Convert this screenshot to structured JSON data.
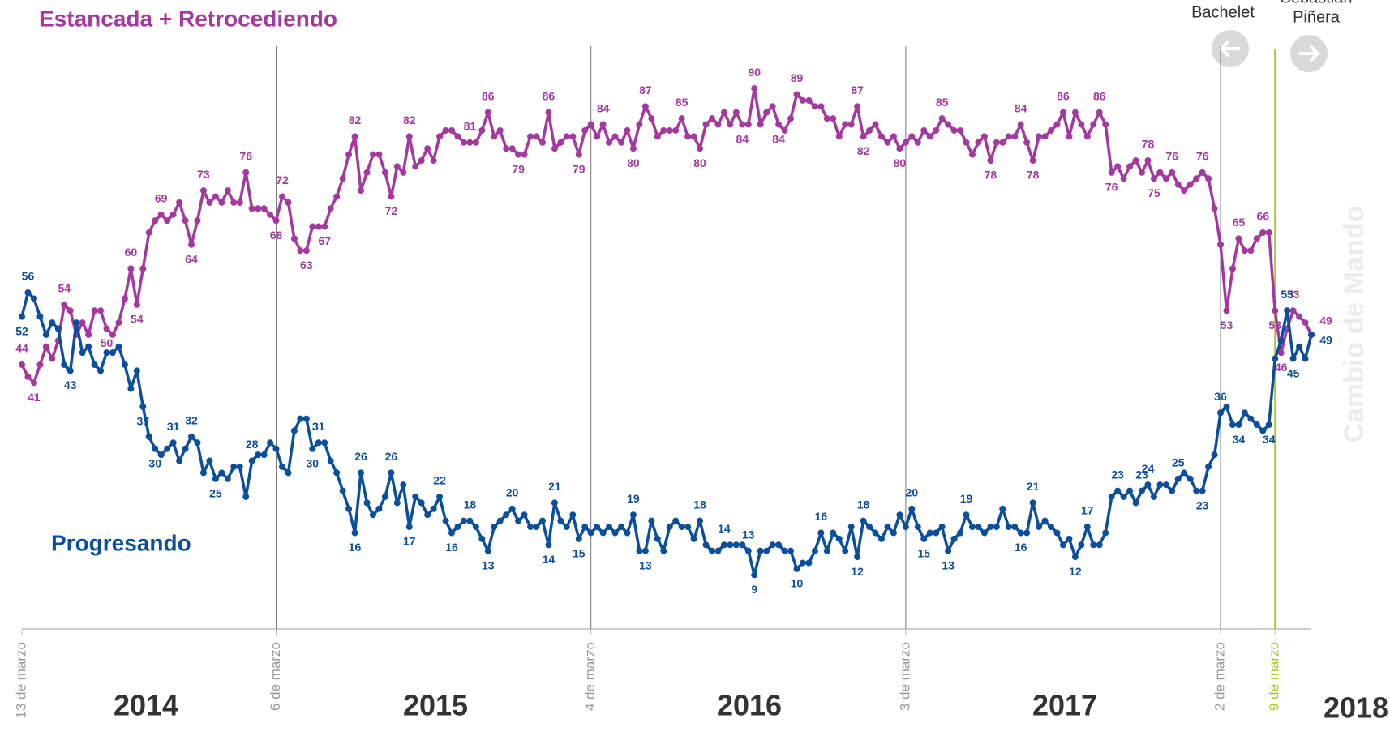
{
  "chart_data": {
    "type": "line",
    "title": "Estancada + Retrocediendo",
    "annotations": {
      "left_president": "Bachelet",
      "right_president": [
        "Sebastián",
        "Piñera"
      ],
      "transition": "Cambio de Mando",
      "years": [
        "2014",
        "2015",
        "2016",
        "2017",
        "2018"
      ]
    },
    "ylim": [
      0,
      100
    ],
    "categories": [
      "13 de marzo",
      null,
      null,
      null,
      null,
      null,
      null,
      null,
      null,
      null,
      null,
      null,
      null,
      null,
      null,
      null,
      null,
      null,
      null,
      null,
      null,
      null,
      null,
      null,
      null,
      null,
      null,
      null,
      null,
      null,
      null,
      null,
      null,
      null,
      null,
      null,
      null,
      null,
      null,
      null,
      null,
      null,
      "6 de marzo",
      null,
      null,
      null,
      null,
      null,
      null,
      null,
      null,
      null,
      null,
      null,
      null,
      null,
      null,
      null,
      null,
      null,
      null,
      null,
      null,
      null,
      null,
      null,
      null,
      null,
      null,
      null,
      null,
      null,
      null,
      null,
      null,
      null,
      null,
      null,
      null,
      null,
      null,
      null,
      null,
      null,
      null,
      null,
      null,
      null,
      null,
      null,
      null,
      null,
      null,
      null,
      "4 de marzo",
      null,
      null,
      null,
      null,
      null,
      null,
      null,
      null,
      null,
      null,
      null,
      null,
      null,
      null,
      null,
      null,
      null,
      null,
      null,
      null,
      null,
      null,
      null,
      null,
      null,
      null,
      null,
      null,
      null,
      null,
      null,
      null,
      null,
      null,
      null,
      null,
      null,
      null,
      null,
      null,
      null,
      null,
      null,
      null,
      null,
      null,
      null,
      null,
      null,
      null,
      null,
      "3 de marzo",
      null,
      null,
      null,
      null,
      null,
      null,
      null,
      null,
      null,
      null,
      null,
      null,
      null,
      null,
      null,
      null,
      null,
      null,
      null,
      null,
      null,
      null,
      null,
      null,
      null,
      null,
      null,
      null,
      null,
      null,
      null,
      null,
      null,
      null,
      null,
      null,
      null,
      null,
      null,
      null,
      null,
      null,
      null,
      null,
      null,
      null,
      null,
      null,
      null,
      null,
      null,
      "2 de marzo",
      null,
      null,
      null,
      null,
      null,
      null,
      null,
      null,
      "9 de marzo",
      null,
      null,
      null,
      null,
      null,
      null
    ],
    "highlight_category": 207,
    "series": [
      {
        "name": "Estancada + Retrocediendo",
        "color": "#a3399f",
        "values": [
          44,
          42,
          41,
          44,
          47,
          45,
          48,
          54,
          53,
          49,
          51,
          49,
          53,
          53,
          50,
          49,
          51,
          55,
          60,
          54,
          60,
          66,
          68,
          69,
          68,
          69,
          71,
          68,
          64,
          68,
          73,
          71,
          72,
          71,
          73,
          71,
          71,
          76,
          70,
          70,
          70,
          69,
          68,
          72,
          71,
          65,
          63,
          63,
          67,
          67,
          67,
          70,
          72,
          75,
          79,
          82,
          73,
          76,
          79,
          79,
          76,
          72,
          77,
          76,
          82,
          77,
          78,
          80,
          78,
          82,
          83,
          83,
          82,
          81,
          81,
          81,
          83,
          86,
          82,
          83,
          80,
          80,
          79,
          79,
          82,
          82,
          81,
          86,
          80,
          81,
          82,
          82,
          79,
          83,
          84,
          82,
          84,
          81,
          82,
          81,
          83,
          80,
          84,
          87,
          85,
          82,
          83,
          83,
          83,
          85,
          82,
          82,
          80,
          84,
          85,
          84,
          86,
          84,
          86,
          84,
          84,
          90,
          84,
          86,
          87,
          84,
          83,
          85,
          89,
          88,
          88,
          87,
          87,
          85,
          85,
          82,
          84,
          84,
          87,
          82,
          83,
          84,
          82,
          81,
          82,
          80,
          81,
          82,
          81,
          83,
          82,
          83,
          85,
          84,
          83,
          83,
          81,
          79,
          81,
          82,
          78,
          81,
          81,
          82,
          82,
          84,
          81,
          78,
          82,
          82,
          83,
          84,
          86,
          82,
          86,
          84,
          82,
          84,
          86,
          84,
          76,
          77,
          75,
          77,
          78,
          76,
          78,
          75,
          76,
          75,
          76,
          74,
          73,
          74,
          75,
          76,
          75,
          70,
          64,
          53,
          60,
          65,
          63,
          63,
          65,
          66,
          66,
          53,
          46,
          50,
          53,
          52,
          51,
          49
        ],
        "value_labels": [
          "44",
          null,
          "41",
          null,
          null,
          null,
          null,
          "54",
          null,
          null,
          null,
          null,
          null,
          null,
          "50",
          null,
          null,
          null,
          "60",
          "54",
          null,
          null,
          null,
          "69",
          null,
          null,
          null,
          null,
          "64",
          null,
          "73",
          null,
          null,
          null,
          null,
          null,
          null,
          "76",
          null,
          null,
          null,
          null,
          "68",
          "72",
          null,
          null,
          null,
          "63",
          null,
          null,
          "67",
          null,
          null,
          null,
          null,
          "82",
          null,
          null,
          null,
          null,
          null,
          "72",
          null,
          null,
          "82",
          null,
          null,
          null,
          null,
          null,
          null,
          null,
          null,
          null,
          "81",
          null,
          null,
          "86",
          null,
          null,
          null,
          null,
          "79",
          null,
          null,
          null,
          null,
          "86",
          null,
          null,
          null,
          null,
          "79",
          null,
          null,
          null,
          "84",
          null,
          null,
          null,
          null,
          "80",
          null,
          "87",
          null,
          null,
          null,
          null,
          null,
          "85",
          null,
          null,
          "80",
          null,
          null,
          null,
          null,
          null,
          null,
          "84",
          null,
          "90",
          null,
          null,
          null,
          "84",
          null,
          null,
          "89",
          null,
          null,
          null,
          null,
          null,
          null,
          null,
          null,
          null,
          "87",
          "82",
          null,
          null,
          null,
          null,
          null,
          "80",
          null,
          null,
          null,
          null,
          null,
          null,
          "85",
          null,
          null,
          null,
          null,
          null,
          null,
          null,
          "78",
          null,
          null,
          null,
          null,
          "84",
          null,
          "78",
          null,
          null,
          null,
          null,
          "86",
          null,
          null,
          null,
          null,
          null,
          "86",
          null,
          "76",
          null,
          null,
          null,
          null,
          null,
          "78",
          "75",
          null,
          null,
          "76",
          null,
          null,
          null,
          null,
          "76",
          null,
          null,
          null,
          "53",
          null,
          "65",
          null,
          null,
          null,
          "66",
          null,
          "53",
          "46",
          null,
          "53",
          null,
          null,
          "49"
        ]
      },
      {
        "name": "Progresando",
        "color": "#0b4f9c",
        "values": [
          52,
          56,
          55,
          52,
          49,
          51,
          50,
          44,
          43,
          51,
          46,
          47,
          44,
          43,
          46,
          46,
          47,
          44,
          40,
          43,
          37,
          32,
          30,
          29,
          30,
          31,
          28,
          30,
          32,
          31,
          26,
          28,
          25,
          26,
          25,
          27,
          27,
          22,
          28,
          29,
          29,
          31,
          30,
          27,
          26,
          33,
          35,
          35,
          30,
          31,
          31,
          28,
          26,
          23,
          20,
          16,
          26,
          21,
          19,
          20,
          22,
          26,
          21,
          24,
          17,
          22,
          21,
          19,
          20,
          22,
          18,
          16,
          17,
          18,
          18,
          17,
          15,
          13,
          17,
          18,
          19,
          20,
          18,
          19,
          17,
          17,
          18,
          14,
          21,
          18,
          17,
          19,
          15,
          17,
          16,
          17,
          16,
          17,
          16,
          17,
          16,
          19,
          13,
          13,
          18,
          15,
          13,
          17,
          18,
          17,
          17,
          15,
          18,
          14,
          13,
          13,
          14,
          14,
          14,
          14,
          13,
          9,
          13,
          13,
          14,
          14,
          13,
          13,
          10,
          11,
          11,
          13,
          16,
          13,
          16,
          15,
          13,
          17,
          12,
          18,
          17,
          16,
          15,
          17,
          16,
          19,
          17,
          20,
          17,
          15,
          16,
          16,
          17,
          13,
          15,
          16,
          19,
          17,
          17,
          16,
          17,
          17,
          20,
          17,
          17,
          16,
          16,
          21,
          17,
          18,
          17,
          16,
          14,
          15,
          12,
          14,
          17,
          14,
          14,
          16,
          22,
          23,
          22,
          23,
          21,
          23,
          24,
          22,
          24,
          24,
          23,
          25,
          26,
          25,
          23,
          23,
          27,
          29,
          36,
          37,
          34,
          34,
          36,
          35,
          34,
          33,
          34,
          45,
          48,
          53,
          45,
          47,
          45,
          49
        ],
        "value_labels": [
          "52",
          "56",
          null,
          null,
          null,
          null,
          null,
          null,
          "43",
          null,
          null,
          null,
          null,
          null,
          null,
          null,
          null,
          null,
          null,
          null,
          "37",
          null,
          "30",
          null,
          null,
          "31",
          null,
          null,
          "32",
          null,
          null,
          null,
          "25",
          null,
          null,
          null,
          null,
          null,
          "28",
          null,
          null,
          null,
          null,
          null,
          null,
          null,
          null,
          null,
          "30",
          "31",
          null,
          null,
          null,
          null,
          null,
          "16",
          "26",
          null,
          null,
          null,
          null,
          "26",
          null,
          null,
          "17",
          null,
          null,
          null,
          null,
          "22",
          null,
          "16",
          null,
          null,
          "18",
          null,
          null,
          "13",
          null,
          null,
          null,
          "20",
          null,
          null,
          null,
          null,
          null,
          "14",
          "21",
          null,
          null,
          null,
          "15",
          null,
          null,
          null,
          null,
          null,
          null,
          null,
          null,
          "19",
          null,
          "13",
          null,
          null,
          null,
          null,
          null,
          null,
          null,
          null,
          "18",
          null,
          null,
          null,
          "14",
          null,
          null,
          null,
          "13",
          "9",
          null,
          null,
          null,
          null,
          null,
          null,
          "10",
          null,
          null,
          null,
          "16",
          null,
          null,
          null,
          null,
          null,
          "12",
          "18",
          null,
          null,
          null,
          null,
          null,
          null,
          null,
          "20",
          null,
          "15",
          null,
          null,
          null,
          "13",
          null,
          null,
          "19",
          null,
          null,
          null,
          null,
          null,
          null,
          null,
          null,
          "16",
          null,
          "21",
          null,
          null,
          null,
          null,
          null,
          null,
          "12",
          null,
          "17",
          null,
          null,
          null,
          null,
          "23",
          null,
          null,
          null,
          "23",
          "24",
          null,
          null,
          null,
          null,
          "25",
          null,
          null,
          null,
          "23",
          null,
          null,
          "36",
          null,
          null,
          "34",
          null,
          null,
          null,
          null,
          "34",
          null,
          null,
          "53",
          "45",
          null,
          null,
          "49"
        ]
      }
    ]
  }
}
